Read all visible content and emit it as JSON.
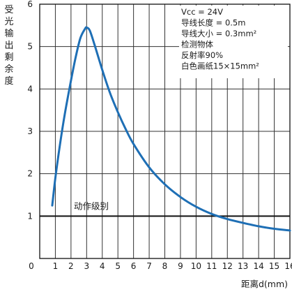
{
  "chart_data": {
    "type": "line",
    "ylabel": "受光输出剩余度",
    "xlabel": "距离d(mm)",
    "xlim": [
      0,
      16
    ],
    "ylim": [
      0,
      6
    ],
    "x_ticks": [
      0,
      1,
      2,
      3,
      4,
      5,
      6,
      7,
      8,
      9,
      10,
      11,
      12,
      13,
      14,
      15,
      16
    ],
    "y_ticks": [
      1,
      2,
      3,
      4,
      5,
      6
    ],
    "grid": true,
    "series": [
      {
        "color": "#1e6fb5",
        "x": [
          0.8,
          1.0,
          1.3,
          1.6,
          2.0,
          2.3,
          2.6,
          2.9,
          3.0,
          3.2,
          3.5,
          4.0,
          4.5,
          5.0,
          5.5,
          6.0,
          7.0,
          8.0,
          9.0,
          10.0,
          11.0,
          12.0,
          13.0,
          14.0,
          15.0,
          16.0
        ],
        "y": [
          1.25,
          1.9,
          2.7,
          3.4,
          4.2,
          4.75,
          5.2,
          5.42,
          5.45,
          5.38,
          5.05,
          4.45,
          3.9,
          3.45,
          3.05,
          2.7,
          2.15,
          1.75,
          1.45,
          1.22,
          1.05,
          0.93,
          0.84,
          0.76,
          0.7,
          0.66
        ]
      }
    ],
    "reference_line": {
      "y": 1,
      "label": "动作级别"
    },
    "annotations": [
      "Vcc = 24V",
      "导线长度 = 0.5m",
      "导线大小 = 0.3mm²",
      "检测物体",
      "反射率90%",
      "白色画纸15×15mm²"
    ]
  }
}
